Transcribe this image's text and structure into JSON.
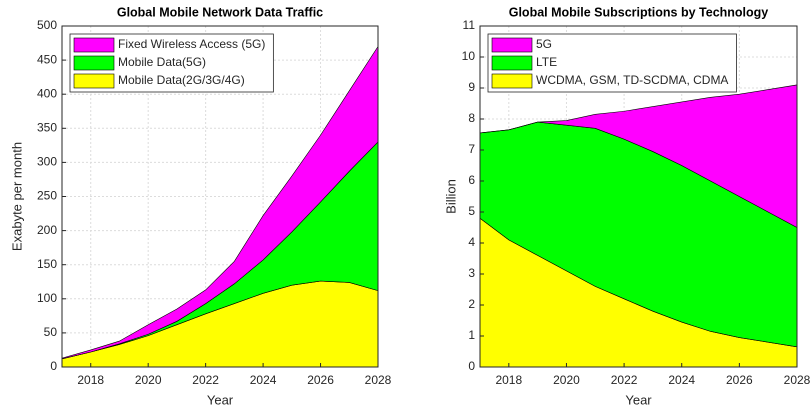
{
  "chart_data": [
    {
      "type": "area",
      "stacked": true,
      "title": "Global Mobile Network Data Traffic",
      "xlabel": "Year",
      "ylabel": "Exabyte per month",
      "x": [
        2017,
        2018,
        2019,
        2020,
        2021,
        2022,
        2023,
        2024,
        2025,
        2026,
        2027,
        2028
      ],
      "xlim": [
        2017,
        2028
      ],
      "xticks": [
        2018,
        2020,
        2022,
        2024,
        2026,
        2028
      ],
      "ylim": [
        0,
        500
      ],
      "yticks": [
        0,
        50,
        100,
        150,
        200,
        250,
        300,
        350,
        400,
        450,
        500
      ],
      "grid": true,
      "legend": "upper left",
      "series": [
        {
          "name": "Mobile Data(2G/3G/4G)",
          "color": "#ffff00",
          "values": [
            12,
            22,
            33,
            46,
            62,
            78,
            93,
            108,
            120,
            126,
            124,
            112
          ]
        },
        {
          "name": "Mobile Data(5G)",
          "color": "#00ff00",
          "values": [
            0,
            0,
            1,
            2,
            5,
            15,
            29,
            49,
            78,
            116,
            163,
            218
          ]
        },
        {
          "name": "Fixed Wireless Access (5G)",
          "color": "#ff00ff",
          "values": [
            1,
            3,
            4,
            14,
            18,
            20,
            33,
            65,
            82,
            98,
            118,
            140
          ]
        }
      ]
    },
    {
      "type": "area",
      "stacked": true,
      "title": "Global Mobile Subscriptions by Technology",
      "xlabel": "Year",
      "ylabel": "Billion",
      "x": [
        2017,
        2018,
        2019,
        2020,
        2021,
        2022,
        2023,
        2024,
        2025,
        2026,
        2027,
        2028
      ],
      "xlim": [
        2017,
        2028
      ],
      "xticks": [
        2018,
        2020,
        2022,
        2024,
        2026,
        2028
      ],
      "ylim": [
        0,
        11
      ],
      "yticks": [
        0,
        1,
        2,
        3,
        4,
        5,
        6,
        7,
        8,
        9,
        10,
        11
      ],
      "grid": true,
      "legend": "upper left",
      "series": [
        {
          "name": "WCDMA, GSM, TD-SCDMA, CDMA",
          "color": "#ffff00",
          "values": [
            4.8,
            4.1,
            3.6,
            3.1,
            2.6,
            2.2,
            1.8,
            1.45,
            1.15,
            0.95,
            0.8,
            0.65
          ]
        },
        {
          "name": "LTE",
          "color": "#00ff00",
          "values": [
            2.75,
            3.55,
            4.3,
            4.7,
            5.1,
            5.15,
            5.15,
            5.05,
            4.85,
            4.55,
            4.2,
            3.85
          ]
        },
        {
          "name": "5G",
          "color": "#ff00ff",
          "values": [
            0,
            0,
            0,
            0.15,
            0.45,
            0.9,
            1.45,
            2.05,
            2.7,
            3.3,
            3.95,
            4.6
          ]
        }
      ]
    }
  ]
}
